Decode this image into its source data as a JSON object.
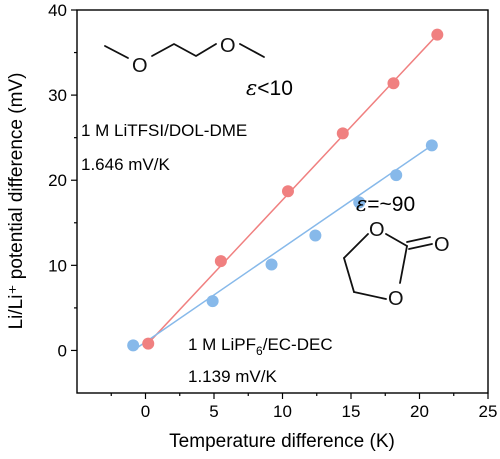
{
  "chart_data": {
    "type": "scatter",
    "xlabel": "Temperature difference (K)",
    "ylabel": "Li/Li⁺ potential difference (mV)",
    "xlim": [
      -5,
      25
    ],
    "ylim": [
      -5,
      40
    ],
    "xticks": [
      0,
      5,
      10,
      15,
      20,
      25
    ],
    "yticks": [
      0,
      10,
      20,
      30,
      40
    ],
    "grid": false,
    "series": [
      {
        "name": "1 M LiTFSI/DOL-DME",
        "color": "#f08080",
        "points": [
          [
            0.2,
            0.8
          ],
          [
            5.5,
            10.5
          ],
          [
            10.4,
            18.7
          ],
          [
            14.4,
            25.5
          ],
          [
            18.1,
            31.4
          ],
          [
            21.3,
            37.1
          ]
        ],
        "fit": [
          [
            0.0,
            0.5
          ],
          [
            21.3,
            37.1
          ]
        ]
      },
      {
        "name": "1 M LiPF6/EC-DEC",
        "color": "#87b9ea",
        "points": [
          [
            -0.9,
            0.6
          ],
          [
            4.9,
            5.8
          ],
          [
            9.2,
            10.1
          ],
          [
            12.4,
            13.5
          ],
          [
            15.6,
            17.4
          ],
          [
            18.3,
            20.6
          ],
          [
            20.9,
            24.1
          ]
        ],
        "fit": [
          [
            -0.9,
            0.0
          ],
          [
            20.9,
            24.1
          ]
        ]
      }
    ],
    "annotations": {
      "tfsi_label": "1 M LiTFSI/DOL-DME",
      "tfsi_slope": "1.646 mV/K",
      "pf6_prefix": "1 M LiPF",
      "pf6_sub": "6",
      "pf6_suffix": "/EC-DEC",
      "pf6_slope": "1.139 mV/K",
      "eps_symbol": "ε",
      "eps_low_rest": "<10",
      "eps_high_rest": "=~90"
    },
    "molecules": {
      "dme_oxygen": "O",
      "ec_oxygen": "O"
    }
  }
}
